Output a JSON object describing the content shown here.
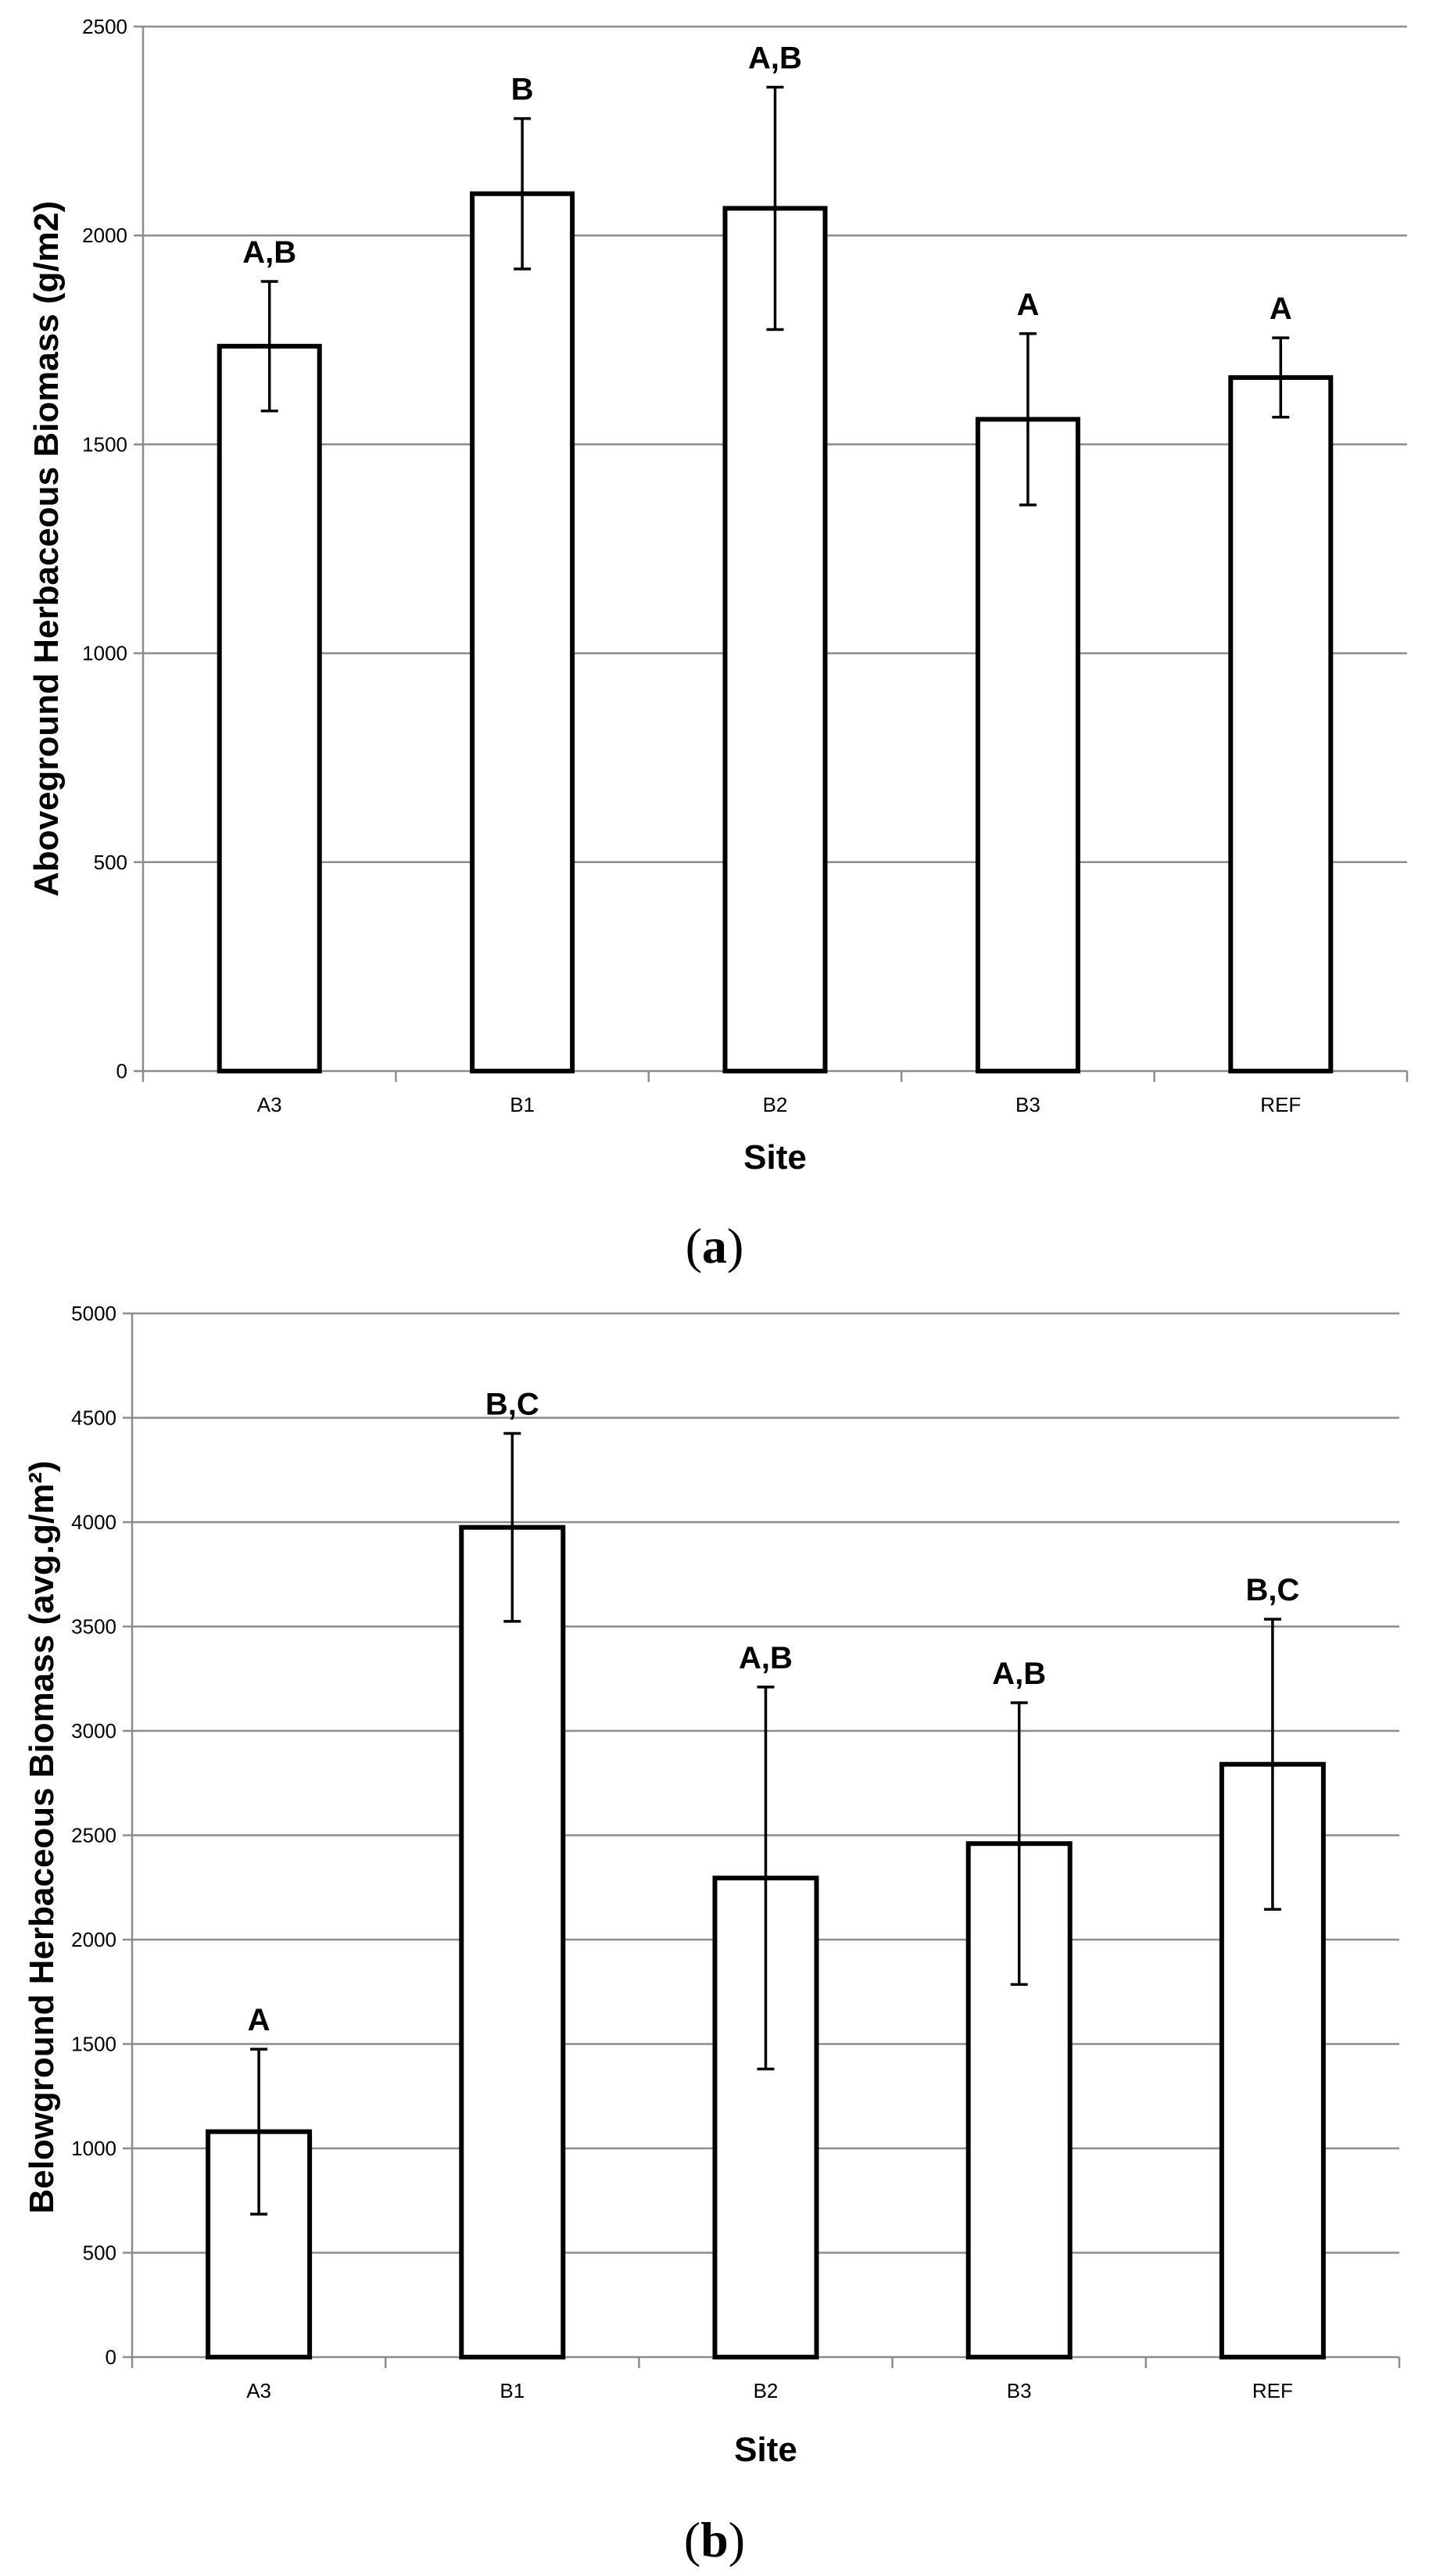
{
  "chart_data": [
    {
      "type": "bar",
      "panel_label": "a",
      "categories": [
        "A3",
        "B1",
        "B2",
        "B3",
        "REF"
      ],
      "values": [
        1735,
        2100,
        2065,
        1560,
        1660
      ],
      "error": [
        155,
        180,
        290,
        205,
        95
      ],
      "significance_labels": [
        "A,B",
        "B",
        "A,B",
        "A",
        "A"
      ],
      "xlabel": "Site",
      "ylabel": "Aboveground Herbaceous Biomass (g/m2)",
      "ylim": [
        0,
        2500
      ],
      "yticks": [
        0,
        500,
        1000,
        1500,
        2000,
        2500
      ],
      "grid": true,
      "legend": "none"
    },
    {
      "type": "bar",
      "panel_label": "b",
      "categories": [
        "A3",
        "B1",
        "B2",
        "B3",
        "REF"
      ],
      "values": [
        1080,
        3975,
        2295,
        2460,
        2840
      ],
      "error": [
        395,
        450,
        915,
        675,
        695
      ],
      "significance_labels": [
        "A",
        "B,C",
        "A,B",
        "A,B",
        "B,C"
      ],
      "xlabel": "Site",
      "ylabel": "Belowground Herbaceous Biomass (avg.g/m²)",
      "ylim": [
        0,
        5000
      ],
      "yticks": [
        0,
        500,
        1000,
        1500,
        2000,
        2500,
        3000,
        3500,
        4000,
        4500,
        5000
      ],
      "grid": true,
      "legend": "none"
    }
  ]
}
